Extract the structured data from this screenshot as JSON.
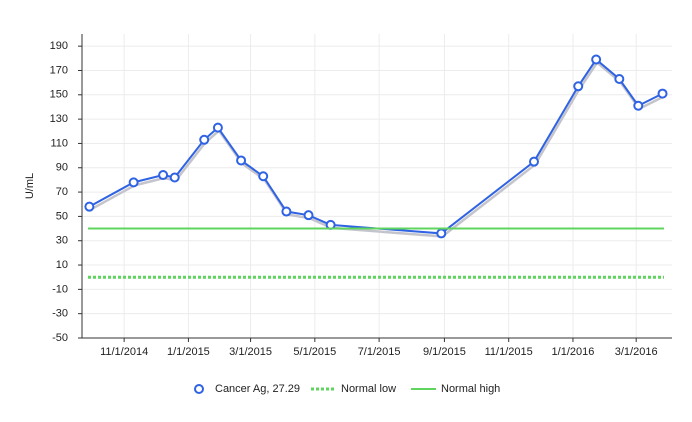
{
  "chart_data": {
    "type": "line",
    "ylabel": "U/mL",
    "x": [
      "2014-09-29",
      "2014-11-10",
      "2014-12-08",
      "2014-12-19",
      "2015-01-16",
      "2015-01-29",
      "2015-02-20",
      "2015-03-13",
      "2015-04-04",
      "2015-04-25",
      "2015-05-16",
      "2015-08-29",
      "2015-11-25",
      "2016-01-06",
      "2016-01-23",
      "2016-02-14",
      "2016-03-03",
      "2016-03-26"
    ],
    "series": [
      {
        "name": "Cancer Ag, 27.29",
        "color": "#2f63e3",
        "values": [
          58,
          78,
          84,
          82,
          113,
          123,
          96,
          83,
          54,
          51,
          43,
          36,
          95,
          157,
          179,
          163,
          141,
          151
        ]
      },
      {
        "name": "Normal low",
        "color": "#5fd45f",
        "level": 0,
        "dashed": true
      },
      {
        "name": "Normal high",
        "color": "#5fd45f",
        "level": 40,
        "dashed": false
      }
    ],
    "xlim": [
      "2014-09-22",
      "2016-04-04"
    ],
    "xticks": [
      {
        "value": "2014-11-01",
        "label": "11/1/2014"
      },
      {
        "value": "2015-01-01",
        "label": "1/1/2015"
      },
      {
        "value": "2015-03-01",
        "label": "3/1/2015"
      },
      {
        "value": "2015-05-01",
        "label": "5/1/2015"
      },
      {
        "value": "2015-07-01",
        "label": "7/1/2015"
      },
      {
        "value": "2015-09-01",
        "label": "9/1/2015"
      },
      {
        "value": "2015-11-01",
        "label": "11/1/2015"
      },
      {
        "value": "2016-01-01",
        "label": "1/1/2016"
      },
      {
        "value": "2016-03-01",
        "label": "3/1/2016"
      }
    ],
    "ylim": [
      -50,
      200
    ],
    "yticks": [
      -50,
      -30,
      -10,
      10,
      30,
      50,
      70,
      90,
      110,
      130,
      150,
      170,
      190
    ],
    "grid": true
  }
}
